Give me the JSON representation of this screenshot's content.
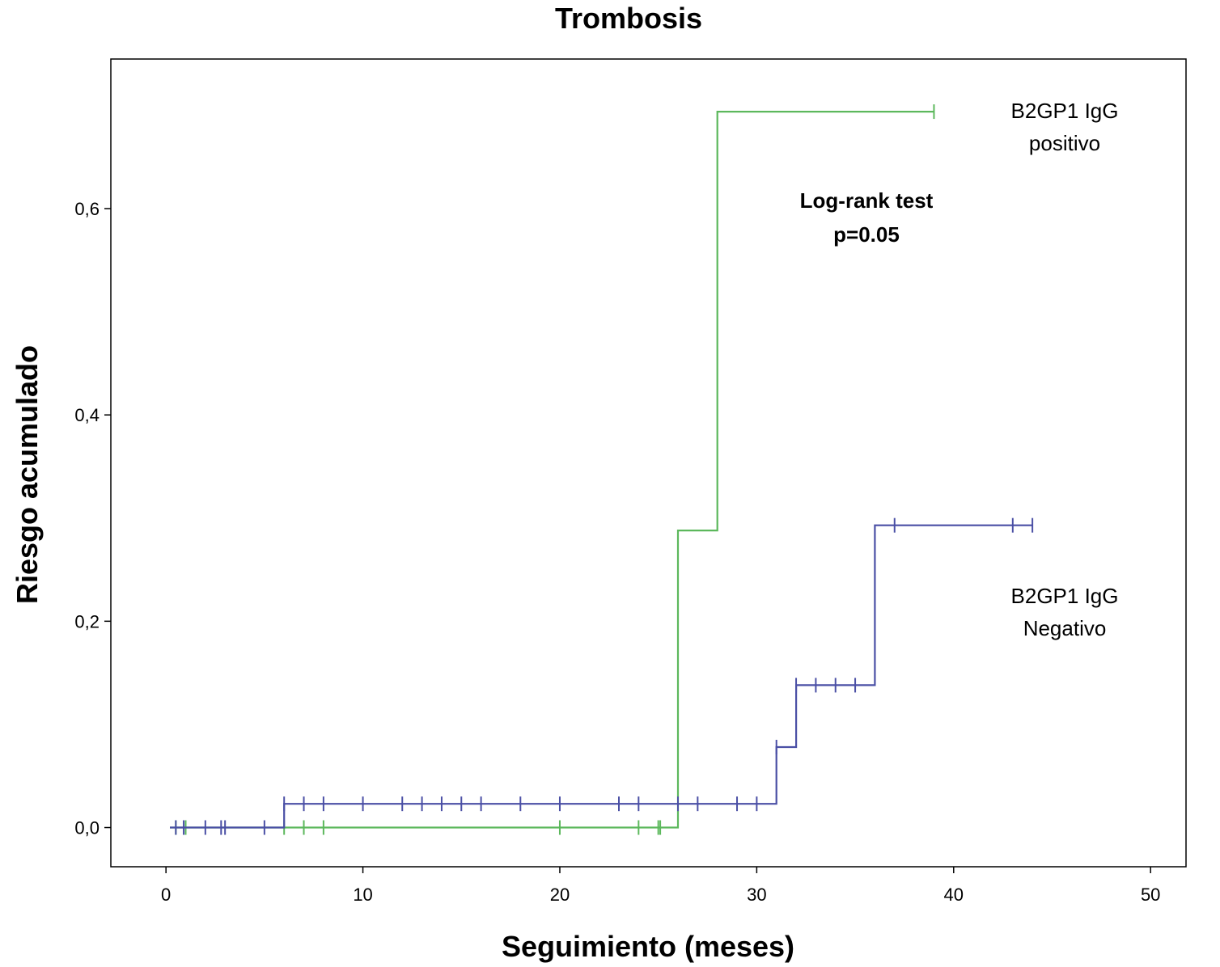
{
  "chart_data": {
    "type": "line",
    "step": true,
    "title": "Trombosis",
    "xlabel": "Seguimiento (meses)",
    "ylabel": "Riesgo acumulado",
    "xlim": [
      -2.8,
      51.8
    ],
    "ylim": [
      -0.038,
      0.745
    ],
    "xticks": [
      0,
      10,
      20,
      30,
      40,
      50
    ],
    "xtick_labels": [
      "0",
      "10",
      "20",
      "30",
      "40",
      "50"
    ],
    "yticks": [
      0.0,
      0.2,
      0.4,
      0.6
    ],
    "ytick_labels": [
      "0,0",
      "0,2",
      "0,4",
      "0,6"
    ],
    "grid": false,
    "series": [
      {
        "name": "B2GP1 IgG positivo",
        "label_lines": [
          "B2GP1 IgG",
          "positivo"
        ],
        "color": "#5cb85c",
        "steps": [
          [
            0.2,
            0.0
          ],
          [
            26,
            0.0
          ],
          [
            26,
            0.288
          ],
          [
            28,
            0.288
          ],
          [
            28,
            0.694
          ],
          [
            39,
            0.694
          ]
        ],
        "censored": [
          [
            0.5,
            0.0
          ],
          [
            1,
            0.0
          ],
          [
            6,
            0.0
          ],
          [
            7,
            0.0
          ],
          [
            8,
            0.0
          ],
          [
            20,
            0.0
          ],
          [
            24,
            0.0
          ],
          [
            25,
            0.0
          ],
          [
            25.1,
            0.0
          ],
          [
            39,
            0.694
          ]
        ]
      },
      {
        "name": "B2GP1 IgG Negativo",
        "label_lines": [
          "B2GP1 IgG",
          "Negativo"
        ],
        "color": "#4a4fa5",
        "steps": [
          [
            0.2,
            0.0
          ],
          [
            6,
            0.0
          ],
          [
            6,
            0.023
          ],
          [
            31,
            0.023
          ],
          [
            31,
            0.078
          ],
          [
            32,
            0.078
          ],
          [
            32,
            0.138
          ],
          [
            36,
            0.138
          ],
          [
            36,
            0.293
          ],
          [
            44,
            0.293
          ]
        ],
        "censored": [
          [
            0.5,
            0.0
          ],
          [
            0.9,
            0.0
          ],
          [
            2,
            0.0
          ],
          [
            2.8,
            0.0
          ],
          [
            3,
            0.0
          ],
          [
            5,
            0.0
          ],
          [
            6,
            0.023
          ],
          [
            7,
            0.023
          ],
          [
            8,
            0.023
          ],
          [
            10,
            0.023
          ],
          [
            12,
            0.023
          ],
          [
            13,
            0.023
          ],
          [
            14,
            0.023
          ],
          [
            15,
            0.023
          ],
          [
            16,
            0.023
          ],
          [
            18,
            0.023
          ],
          [
            20,
            0.023
          ],
          [
            23,
            0.023
          ],
          [
            24,
            0.023
          ],
          [
            26,
            0.023
          ],
          [
            27,
            0.023
          ],
          [
            29,
            0.023
          ],
          [
            30,
            0.023
          ],
          [
            31,
            0.078
          ],
          [
            32,
            0.138
          ],
          [
            33,
            0.138
          ],
          [
            34,
            0.138
          ],
          [
            35,
            0.138
          ],
          [
            37,
            0.293
          ],
          [
            43,
            0.293
          ],
          [
            44,
            0.293
          ]
        ]
      }
    ],
    "annotations": [
      {
        "lines": [
          "Log-rank test",
          "p=0.05"
        ]
      }
    ]
  }
}
